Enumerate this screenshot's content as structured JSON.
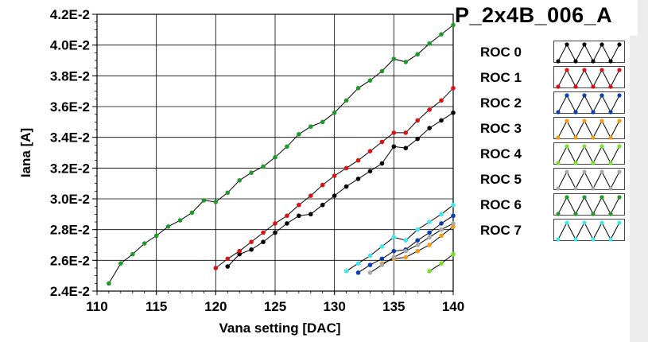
{
  "title": "P_2x4B_006_A",
  "chart_data": {
    "type": "line",
    "xlabel": "Vana setting [DAC]",
    "ylabel": "Iana [A]",
    "xlim": [
      110,
      140
    ],
    "ylim": [
      0.024,
      0.042
    ],
    "x_ticks": [
      110,
      115,
      120,
      125,
      130,
      135,
      140
    ],
    "x_tick_labels": [
      "110",
      "115",
      "120",
      "125",
      "130",
      "135",
      "140"
    ],
    "y_ticks": [
      0.024,
      0.026,
      0.028,
      0.03,
      0.032,
      0.034,
      0.036,
      0.038,
      0.04,
      0.042
    ],
    "y_tick_labels": [
      "2.4E-2",
      "2.6E-2",
      "2.8E-2",
      "3.0E-2",
      "3.2E-2",
      "3.4E-2",
      "3.6E-2",
      "3.8E-2",
      "4.0E-2",
      "4.2E-2"
    ],
    "grid": true,
    "legend_position": "right",
    "series": [
      {
        "name": "ROC 0",
        "color": "#000000",
        "x": [
          121,
          122,
          123,
          124,
          125,
          126,
          127,
          128,
          129,
          130,
          131,
          132,
          133,
          134,
          135,
          136,
          137,
          138,
          139,
          140
        ],
        "y": [
          0.0256,
          0.0264,
          0.0267,
          0.0272,
          0.0278,
          0.0284,
          0.0289,
          0.029,
          0.0296,
          0.0302,
          0.0308,
          0.0313,
          0.0318,
          0.0323,
          0.0334,
          0.0333,
          0.0339,
          0.0346,
          0.0351,
          0.0356
        ]
      },
      {
        "name": "ROC 1",
        "color": "#dd1111",
        "x": [
          120,
          121,
          122,
          123,
          124,
          125,
          126,
          127,
          128,
          129,
          130,
          131,
          132,
          133,
          134,
          135,
          136,
          137,
          138,
          139,
          140
        ],
        "y": [
          0.0255,
          0.0261,
          0.0266,
          0.0272,
          0.0278,
          0.0284,
          0.0289,
          0.0296,
          0.0302,
          0.0309,
          0.0315,
          0.032,
          0.0325,
          0.0331,
          0.0337,
          0.0343,
          0.0343,
          0.0351,
          0.0358,
          0.0364,
          0.0372
        ]
      },
      {
        "name": "ROC 2",
        "color": "#0b3fb0",
        "x": [
          132,
          133,
          134,
          135,
          136,
          137,
          138,
          139,
          140
        ],
        "y": [
          0.0252,
          0.0257,
          0.0261,
          0.0266,
          0.0267,
          0.0273,
          0.0278,
          0.0284,
          0.0289
        ]
      },
      {
        "name": "ROC 3",
        "color": "#f59a12",
        "x": [
          134,
          135,
          136,
          137,
          138,
          139,
          140
        ],
        "y": [
          0.0258,
          0.0261,
          0.0262,
          0.0266,
          0.027,
          0.0276,
          0.0282
        ]
      },
      {
        "name": "ROC 4",
        "color": "#7adf2a",
        "x": [
          138,
          139,
          140
        ],
        "y": [
          0.0253,
          0.0258,
          0.0264
        ]
      },
      {
        "name": "ROC 5",
        "color": "#a9a9a9",
        "x": [
          133,
          134,
          135,
          136,
          137,
          138,
          139,
          140
        ],
        "y": [
          0.0252,
          0.0257,
          0.0262,
          0.0266,
          0.027,
          0.0275,
          0.028,
          0.0284
        ]
      },
      {
        "name": "ROC 6",
        "color": "#1f9a2a",
        "x": [
          111,
          112,
          113,
          114,
          115,
          116,
          117,
          118,
          119,
          120,
          121,
          122,
          123,
          124,
          125,
          126,
          127,
          128,
          129,
          130,
          131,
          132,
          133,
          134,
          135,
          136,
          137,
          138,
          139,
          140
        ],
        "y": [
          0.0245,
          0.0258,
          0.0264,
          0.0271,
          0.0276,
          0.0282,
          0.0286,
          0.0291,
          0.0299,
          0.0298,
          0.0304,
          0.0312,
          0.0317,
          0.0321,
          0.0327,
          0.0334,
          0.0342,
          0.0347,
          0.035,
          0.0356,
          0.0364,
          0.0372,
          0.0377,
          0.0383,
          0.0391,
          0.0389,
          0.0394,
          0.0401,
          0.0407,
          0.0413
        ]
      },
      {
        "name": "ROC 7",
        "color": "#3fe6ee",
        "x": [
          131,
          132,
          133,
          134,
          135,
          136,
          137,
          138,
          139,
          140
        ],
        "y": [
          0.0253,
          0.0258,
          0.0263,
          0.0269,
          0.0275,
          0.0273,
          0.028,
          0.0285,
          0.029,
          0.0296
        ]
      }
    ]
  }
}
